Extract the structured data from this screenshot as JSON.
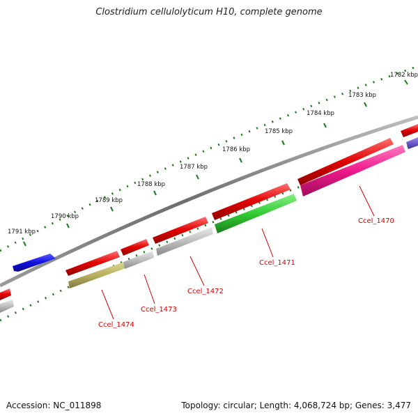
{
  "title": "Clostridium cellulolyticum H10, complete genome",
  "accession": "Accession: NC_011898",
  "topology": "Topology: circular; Length: 4,068,724 bp; Genes: 3,477",
  "ticks": [
    "1782 kbp",
    "1783 kbp",
    "1784 kbp",
    "1785 kbp",
    "1786 kbp",
    "1787 kbp",
    "1788 kbp",
    "1789 kbp",
    "1790 kbp",
    "1791 kbp"
  ],
  "gene_labels": [
    "Ccel_1470",
    "Ccel_1471",
    "Ccel_1472",
    "Ccel_1473",
    "Ccel_1474"
  ],
  "colors": {
    "backbone": "#7a7a7a",
    "ticks": "#1a7a1a",
    "red": "#e00000",
    "blue": "#1010e0",
    "purple": "#6a5acd",
    "green": "#33cc33",
    "magenta": "#ee1a8a",
    "gray": "#bdbdbd",
    "olive": "#b8b060",
    "label": "#d40000"
  }
}
